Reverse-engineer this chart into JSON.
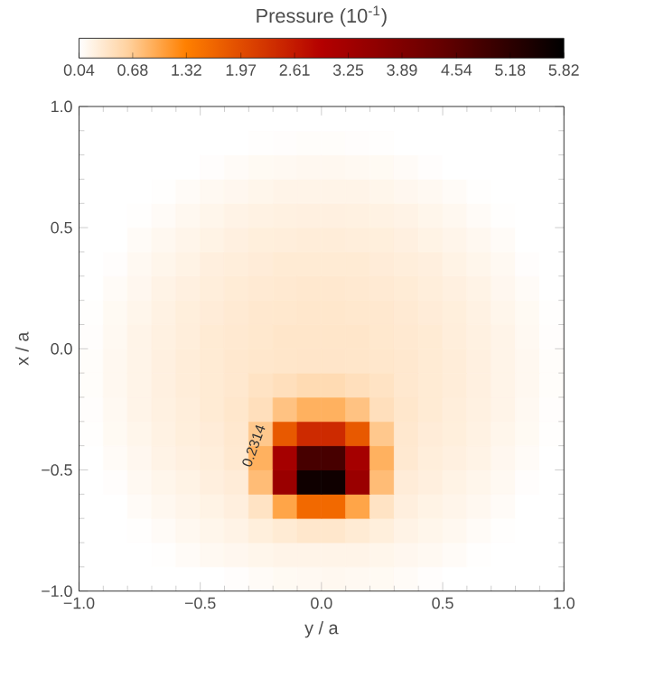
{
  "chart_data": {
    "type": "heatmap",
    "clabel": "Pressure (10$^{-1}$)",
    "xlabel": "y / a",
    "ylabel": "x / a",
    "xlim": [
      -1,
      1
    ],
    "ylim": [
      -1,
      1
    ],
    "xticks": [
      {
        "value": -1,
        "label": "−1.0"
      },
      {
        "value": -0.5,
        "label": "−0.5"
      },
      {
        "value": 0,
        "label": "0.0"
      },
      {
        "value": 0.5,
        "label": "0.5"
      },
      {
        "value": 1,
        "label": "1.0"
      }
    ],
    "yticks": [
      {
        "value": -1,
        "label": "−1.0"
      },
      {
        "value": -0.5,
        "label": "−0.5"
      },
      {
        "value": 0,
        "label": "0.0"
      },
      {
        "value": 0.5,
        "label": "0.5"
      },
      {
        "value": 1,
        "label": "1.0"
      }
    ],
    "clim": [
      0.04,
      5.82
    ],
    "cticks": [
      0.04,
      0.68,
      1.32,
      1.97,
      2.61,
      3.25,
      3.89,
      4.54,
      5.18,
      5.82
    ],
    "annotations": [
      "0.2314"
    ],
    "cells": [
      [
        0.04,
        0.04,
        0.04,
        0.04,
        0.04,
        0.04,
        0.04,
        0.04,
        0.04,
        0.04,
        0.04,
        0.04,
        0.04,
        0.04,
        0.04,
        0.04,
        0.04,
        0.04,
        0.04,
        0.04
      ],
      [
        0.04,
        0.04,
        0.04,
        0.04,
        0.04,
        0.04,
        0.04,
        0.05,
        0.06,
        0.07,
        0.07,
        0.06,
        0.05,
        0.04,
        0.04,
        0.04,
        0.04,
        0.04,
        0.04,
        0.04
      ],
      [
        0.04,
        0.04,
        0.04,
        0.04,
        0.04,
        0.06,
        0.09,
        0.11,
        0.12,
        0.13,
        0.13,
        0.12,
        0.11,
        0.09,
        0.06,
        0.04,
        0.04,
        0.04,
        0.04,
        0.04
      ],
      [
        0.04,
        0.04,
        0.04,
        0.05,
        0.09,
        0.12,
        0.14,
        0.16,
        0.18,
        0.18,
        0.18,
        0.18,
        0.16,
        0.14,
        0.12,
        0.09,
        0.05,
        0.04,
        0.04,
        0.04
      ],
      [
        0.04,
        0.04,
        0.05,
        0.09,
        0.13,
        0.16,
        0.19,
        0.21,
        0.22,
        0.23,
        0.23,
        0.22,
        0.21,
        0.19,
        0.16,
        0.13,
        0.09,
        0.05,
        0.04,
        0.04
      ],
      [
        0.04,
        0.04,
        0.09,
        0.13,
        0.17,
        0.2,
        0.23,
        0.25,
        0.26,
        0.27,
        0.27,
        0.26,
        0.25,
        0.23,
        0.2,
        0.17,
        0.13,
        0.09,
        0.04,
        0.04
      ],
      [
        0.04,
        0.06,
        0.12,
        0.16,
        0.2,
        0.24,
        0.26,
        0.28,
        0.3,
        0.3,
        0.3,
        0.3,
        0.28,
        0.26,
        0.24,
        0.2,
        0.16,
        0.12,
        0.06,
        0.04
      ],
      [
        0.04,
        0.09,
        0.14,
        0.19,
        0.23,
        0.26,
        0.29,
        0.31,
        0.32,
        0.33,
        0.33,
        0.32,
        0.31,
        0.29,
        0.26,
        0.23,
        0.19,
        0.14,
        0.09,
        0.04
      ],
      [
        0.05,
        0.11,
        0.16,
        0.21,
        0.25,
        0.28,
        0.31,
        0.33,
        0.34,
        0.35,
        0.35,
        0.34,
        0.33,
        0.31,
        0.28,
        0.25,
        0.21,
        0.16,
        0.11,
        0.05
      ],
      [
        0.06,
        0.12,
        0.18,
        0.22,
        0.26,
        0.3,
        0.32,
        0.34,
        0.36,
        0.36,
        0.36,
        0.36,
        0.34,
        0.32,
        0.3,
        0.26,
        0.22,
        0.18,
        0.12,
        0.06
      ],
      [
        0.07,
        0.13,
        0.18,
        0.23,
        0.27,
        0.3,
        0.33,
        0.35,
        0.36,
        0.37,
        0.37,
        0.36,
        0.35,
        0.33,
        0.3,
        0.27,
        0.23,
        0.18,
        0.13,
        0.07
      ],
      [
        0.07,
        0.13,
        0.18,
        0.23,
        0.27,
        0.3,
        0.33,
        0.4,
        0.45,
        0.5,
        0.5,
        0.45,
        0.4,
        0.33,
        0.3,
        0.27,
        0.23,
        0.18,
        0.13,
        0.07
      ],
      [
        0.06,
        0.12,
        0.18,
        0.22,
        0.26,
        0.3,
        0.35,
        0.45,
        0.75,
        0.9,
        0.9,
        0.75,
        0.45,
        0.35,
        0.3,
        0.26,
        0.22,
        0.18,
        0.12,
        0.06
      ],
      [
        0.05,
        0.11,
        0.16,
        0.21,
        0.25,
        0.28,
        0.33,
        0.7,
        1.8,
        2.4,
        2.4,
        1.8,
        0.7,
        0.33,
        0.28,
        0.25,
        0.21,
        0.16,
        0.11,
        0.05
      ],
      [
        0.04,
        0.09,
        0.14,
        0.19,
        0.23,
        0.26,
        0.32,
        0.9,
        3.2,
        4.8,
        4.8,
        3.2,
        0.9,
        0.32,
        0.26,
        0.23,
        0.19,
        0.14,
        0.09,
        0.04
      ],
      [
        0.04,
        0.06,
        0.12,
        0.16,
        0.2,
        0.24,
        0.28,
        0.8,
        3.4,
        5.6,
        5.6,
        3.4,
        0.8,
        0.28,
        0.24,
        0.2,
        0.16,
        0.12,
        0.06,
        0.04
      ],
      [
        0.04,
        0.04,
        0.09,
        0.13,
        0.17,
        0.2,
        0.24,
        0.4,
        1.0,
        1.6,
        1.6,
        1.0,
        0.4,
        0.24,
        0.2,
        0.17,
        0.13,
        0.09,
        0.04,
        0.04
      ],
      [
        0.04,
        0.04,
        0.05,
        0.09,
        0.13,
        0.16,
        0.19,
        0.25,
        0.3,
        0.35,
        0.35,
        0.3,
        0.25,
        0.19,
        0.16,
        0.13,
        0.09,
        0.05,
        0.04,
        0.04
      ],
      [
        0.04,
        0.04,
        0.04,
        0.05,
        0.09,
        0.12,
        0.14,
        0.16,
        0.18,
        0.18,
        0.18,
        0.18,
        0.16,
        0.14,
        0.12,
        0.09,
        0.05,
        0.04,
        0.04,
        0.04
      ],
      [
        0.04,
        0.04,
        0.04,
        0.04,
        0.04,
        0.04,
        0.06,
        0.09,
        0.11,
        0.12,
        0.13,
        0.12,
        0.11,
        0.09,
        0.06,
        0.04,
        0.04,
        0.04,
        0.04,
        0.04
      ]
    ]
  }
}
